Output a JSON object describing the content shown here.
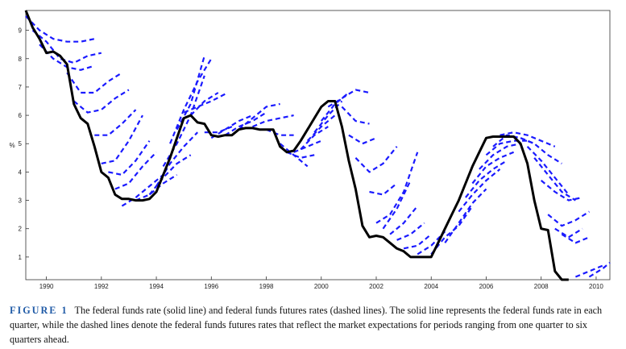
{
  "chart_data": {
    "type": "line",
    "ylabel": "%",
    "xlim": [
      1989.25,
      2010.5
    ],
    "ylim": [
      0.2,
      9.7
    ],
    "x_ticks": [
      1990,
      1992,
      1994,
      1996,
      1998,
      2000,
      2002,
      2004,
      2006,
      2008,
      2010
    ],
    "y_ticks": [
      1,
      2,
      3,
      4,
      5,
      6,
      7,
      8,
      9
    ],
    "grid": false,
    "colors": {
      "actual": "#000000",
      "futures": "#1a1aff"
    },
    "series": [
      {
        "style": "solid",
        "x": [
          1989.25,
          1989.5,
          1989.75,
          1990.0,
          1990.25,
          1990.5,
          1990.75,
          1991.0,
          1991.25,
          1991.5,
          1991.75,
          1992.0,
          1992.25,
          1992.5,
          1992.75,
          1993.0,
          1993.25,
          1993.5,
          1993.75,
          1994.0,
          1994.25,
          1994.5,
          1994.75,
          1995.0,
          1995.25,
          1995.5,
          1995.75,
          1996.0,
          1996.25,
          1996.5,
          1996.75,
          1997.0,
          1997.25,
          1997.5,
          1997.75,
          1998.0,
          1998.25,
          1998.5,
          1998.75,
          1999.0,
          1999.25,
          1999.5,
          1999.75,
          2000.0,
          2000.25,
          2000.5,
          2000.75,
          2001.0,
          2001.25,
          2001.5,
          2001.75,
          2002.0,
          2002.25,
          2002.5,
          2002.75,
          2003.0,
          2003.25,
          2003.5,
          2003.75,
          2004.0,
          2004.25,
          2004.5,
          2004.75,
          2005.0,
          2005.25,
          2005.5,
          2005.75,
          2006.0,
          2006.25,
          2006.5,
          2006.75,
          2007.0,
          2007.25,
          2007.5,
          2007.75,
          2008.0,
          2008.25,
          2008.5,
          2008.75,
          2009.0
        ],
        "y": [
          9.7,
          9.1,
          8.7,
          8.2,
          8.25,
          8.1,
          7.8,
          6.4,
          5.9,
          5.7,
          4.9,
          4.0,
          3.8,
          3.2,
          3.05,
          3.05,
          3.0,
          3.0,
          3.05,
          3.3,
          3.9,
          4.5,
          5.2,
          5.9,
          6.0,
          5.75,
          5.7,
          5.3,
          5.25,
          5.3,
          5.3,
          5.5,
          5.55,
          5.55,
          5.5,
          5.5,
          5.5,
          4.9,
          4.7,
          4.75,
          5.1,
          5.5,
          5.9,
          6.3,
          6.5,
          6.5,
          5.6,
          4.4,
          3.4,
          2.1,
          1.7,
          1.75,
          1.7,
          1.5,
          1.3,
          1.2,
          1.0,
          1.0,
          1.0,
          1.0,
          1.5,
          2.0,
          2.5,
          3.0,
          3.6,
          4.2,
          4.7,
          5.2,
          5.25,
          5.25,
          5.25,
          5.25,
          5.0,
          4.3,
          3.0,
          2.0,
          1.95,
          0.5,
          0.2,
          0.2
        ]
      },
      {
        "style": "dashed",
        "x": [
          1989.25,
          1989.75,
          1990.25,
          1990.75,
          1991.25,
          1991.75
        ],
        "y": [
          9.5,
          9.0,
          8.7,
          8.6,
          8.6,
          8.7
        ]
      },
      {
        "style": "dashed",
        "x": [
          1989.5,
          1990.0,
          1990.5,
          1991.0,
          1991.5,
          1992.0
        ],
        "y": [
          9.0,
          8.6,
          8.0,
          7.85,
          8.1,
          8.2
        ]
      },
      {
        "style": "dashed",
        "x": [
          1989.75,
          1990.25,
          1990.75,
          1991.25,
          1991.75
        ],
        "y": [
          8.5,
          8.0,
          7.7,
          7.6,
          7.75
        ]
      },
      {
        "style": "dashed",
        "x": [
          1990.75,
          1991.25,
          1991.75,
          1992.25,
          1992.75
        ],
        "y": [
          7.5,
          6.8,
          6.8,
          7.2,
          7.5
        ]
      },
      {
        "style": "dashed",
        "x": [
          1991.0,
          1991.5,
          1992.0,
          1992.5,
          1993.0
        ],
        "y": [
          6.5,
          6.1,
          6.2,
          6.6,
          6.9
        ]
      },
      {
        "style": "dashed",
        "x": [
          1991.75,
          1992.25,
          1992.75,
          1993.25
        ],
        "y": [
          5.3,
          5.3,
          5.7,
          6.2
        ]
      },
      {
        "style": "dashed",
        "x": [
          1992.0,
          1992.5,
          1993.0,
          1993.5
        ],
        "y": [
          4.3,
          4.4,
          5.1,
          6.0
        ]
      },
      {
        "style": "dashed",
        "x": [
          1992.25,
          1992.75,
          1993.25,
          1993.75
        ],
        "y": [
          4.0,
          3.9,
          4.4,
          5.1
        ]
      },
      {
        "style": "dashed",
        "x": [
          1992.5,
          1993.0,
          1993.5,
          1994.0
        ],
        "y": [
          3.4,
          3.6,
          4.2,
          4.7
        ]
      },
      {
        "style": "dashed",
        "x": [
          1992.75,
          1993.25,
          1993.75,
          1994.25
        ],
        "y": [
          2.8,
          3.1,
          3.5,
          3.9
        ]
      },
      {
        "style": "dashed",
        "x": [
          1993.25,
          1993.75,
          1994.25,
          1994.75
        ],
        "y": [
          3.0,
          3.2,
          3.6,
          3.9
        ]
      },
      {
        "style": "dashed",
        "x": [
          1993.75,
          1994.25,
          1994.75,
          1995.25
        ],
        "y": [
          3.2,
          3.8,
          4.3,
          4.6
        ]
      },
      {
        "style": "dashed",
        "x": [
          1994.0,
          1994.5,
          1995.0,
          1995.5
        ],
        "y": [
          3.5,
          4.3,
          4.9,
          5.4
        ]
      },
      {
        "style": "dashed",
        "x": [
          1994.25,
          1994.75,
          1995.25,
          1995.75
        ],
        "y": [
          4.2,
          5.0,
          6.0,
          7.4
        ]
      },
      {
        "style": "dashed",
        "x": [
          1994.5,
          1995.0,
          1995.5,
          1996.0
        ],
        "y": [
          5.0,
          6.2,
          7.2,
          8.0
        ]
      },
      {
        "style": "dashed",
        "x": [
          1994.75,
          1995.25,
          1995.75
        ],
        "y": [
          5.5,
          6.4,
          8.1
        ]
      },
      {
        "style": "dashed",
        "x": [
          1995.0,
          1995.5,
          1996.0,
          1996.5
        ],
        "y": [
          6.1,
          6.3,
          6.5,
          6.75
        ]
      },
      {
        "style": "dashed",
        "x": [
          1995.25,
          1995.75,
          1996.25
        ],
        "y": [
          6.0,
          6.5,
          6.8
        ]
      },
      {
        "style": "dashed",
        "x": [
          1995.75,
          1996.25,
          1996.75
        ],
        "y": [
          5.4,
          5.4,
          5.6
        ]
      },
      {
        "style": "dashed",
        "x": [
          1996.0,
          1996.5,
          1997.0,
          1997.5
        ],
        "y": [
          5.2,
          5.5,
          5.8,
          6.0
        ]
      },
      {
        "style": "dashed",
        "x": [
          1996.5,
          1997.0,
          1997.5,
          1998.0
        ],
        "y": [
          5.3,
          5.6,
          5.8,
          6.1
        ]
      },
      {
        "style": "dashed",
        "x": [
          1997.0,
          1997.5,
          1998.0,
          1998.5
        ],
        "y": [
          5.5,
          5.9,
          6.3,
          6.4
        ]
      },
      {
        "style": "dashed",
        "x": [
          1997.5,
          1998.0,
          1998.5,
          1999.0
        ],
        "y": [
          5.6,
          5.8,
          5.9,
          6.0
        ]
      },
      {
        "style": "dashed",
        "x": [
          1998.0,
          1998.5,
          1999.0
        ],
        "y": [
          5.5,
          5.3,
          5.3
        ]
      },
      {
        "style": "dashed",
        "x": [
          1998.5,
          1999.0,
          1999.5
        ],
        "y": [
          5.0,
          4.6,
          4.2
        ]
      },
      {
        "style": "dashed",
        "x": [
          1998.75,
          1999.25,
          1999.75
        ],
        "y": [
          4.7,
          4.5,
          4.6
        ]
      },
      {
        "style": "dashed",
        "x": [
          1999.0,
          1999.5,
          2000.0
        ],
        "y": [
          4.7,
          4.9,
          5.1
        ]
      },
      {
        "style": "dashed",
        "x": [
          1999.25,
          1999.75,
          2000.25
        ],
        "y": [
          4.8,
          5.3,
          5.6
        ]
      },
      {
        "style": "dashed",
        "x": [
          1999.5,
          2000.0,
          2000.5
        ],
        "y": [
          5.1,
          5.6,
          6.0
        ]
      },
      {
        "style": "dashed",
        "x": [
          1999.75,
          2000.25,
          2000.75
        ],
        "y": [
          5.4,
          6.0,
          6.5
        ]
      },
      {
        "style": "dashed",
        "x": [
          2000.0,
          2000.5,
          2001.0
        ],
        "y": [
          5.8,
          6.4,
          6.8
        ]
      },
      {
        "style": "dashed",
        "x": [
          2000.25,
          2000.75,
          2001.25,
          2001.75
        ],
        "y": [
          6.3,
          6.6,
          6.9,
          6.8
        ]
      },
      {
        "style": "dashed",
        "x": [
          2000.75,
          2001.25,
          2001.75
        ],
        "y": [
          6.3,
          5.8,
          5.7
        ]
      },
      {
        "style": "dashed",
        "x": [
          2001.0,
          2001.5,
          2002.0
        ],
        "y": [
          5.3,
          5.0,
          5.2
        ]
      },
      {
        "style": "dashed",
        "x": [
          2001.25,
          2001.75,
          2002.25,
          2002.75
        ],
        "y": [
          4.5,
          4.0,
          4.3,
          4.9
        ]
      },
      {
        "style": "dashed",
        "x": [
          2001.75,
          2002.25,
          2002.75
        ],
        "y": [
          3.3,
          3.2,
          3.6
        ]
      },
      {
        "style": "dashed",
        "x": [
          2002.0,
          2002.5,
          2003.0,
          2003.5
        ],
        "y": [
          2.2,
          2.5,
          3.3,
          4.7
        ]
      },
      {
        "style": "dashed",
        "x": [
          2002.25,
          2002.75,
          2003.25
        ],
        "y": [
          2.0,
          2.7,
          3.7
        ]
      },
      {
        "style": "dashed",
        "x": [
          2002.5,
          2003.0,
          2003.5
        ],
        "y": [
          1.8,
          2.2,
          2.8
        ]
      },
      {
        "style": "dashed",
        "x": [
          2002.75,
          2003.25,
          2003.75
        ],
        "y": [
          1.6,
          1.8,
          2.2
        ]
      },
      {
        "style": "dashed",
        "x": [
          2003.0,
          2003.5,
          2004.0
        ],
        "y": [
          1.3,
          1.4,
          1.8
        ]
      },
      {
        "style": "dashed",
        "x": [
          2003.5,
          2004.0,
          2004.5
        ],
        "y": [
          1.1,
          1.4,
          1.9
        ]
      },
      {
        "style": "dashed",
        "x": [
          2004.0,
          2004.5,
          2005.0,
          2005.5
        ],
        "y": [
          1.1,
          1.7,
          2.1,
          2.8
        ]
      },
      {
        "style": "dashed",
        "x": [
          2004.5,
          2005.0,
          2005.5,
          2006.0
        ],
        "y": [
          1.5,
          2.2,
          2.9,
          3.4
        ]
      },
      {
        "style": "dashed",
        "x": [
          2005.0,
          2005.5,
          2006.0,
          2006.5
        ],
        "y": [
          2.6,
          3.2,
          3.7,
          4.1
        ]
      },
      {
        "style": "dashed",
        "x": [
          2005.25,
          2005.75,
          2006.25,
          2006.75
        ],
        "y": [
          3.1,
          3.7,
          4.1,
          4.4
        ]
      },
      {
        "style": "dashed",
        "x": [
          2005.5,
          2006.0,
          2006.5,
          2007.0
        ],
        "y": [
          3.6,
          4.2,
          4.5,
          4.7
        ]
      },
      {
        "style": "dashed",
        "x": [
          2005.75,
          2006.25,
          2006.75,
          2007.25
        ],
        "y": [
          4.1,
          4.6,
          4.9,
          5.0
        ]
      },
      {
        "style": "dashed",
        "x": [
          2006.0,
          2006.5,
          2007.0,
          2007.5
        ],
        "y": [
          4.6,
          5.0,
          5.1,
          5.1
        ]
      },
      {
        "style": "dashed",
        "x": [
          2006.25,
          2006.75,
          2007.25,
          2007.75
        ],
        "y": [
          4.9,
          5.3,
          5.2,
          5.0
        ]
      },
      {
        "style": "dashed",
        "x": [
          2006.5,
          2007.0,
          2007.5,
          2008.0,
          2008.5
        ],
        "y": [
          5.3,
          5.4,
          5.3,
          5.1,
          4.9
        ]
      },
      {
        "style": "dashed",
        "x": [
          2007.25,
          2007.75,
          2008.25,
          2008.75
        ],
        "y": [
          5.2,
          5.0,
          4.6,
          4.3
        ]
      },
      {
        "style": "dashed",
        "x": [
          2007.5,
          2008.0,
          2008.5,
          2009.0
        ],
        "y": [
          4.9,
          4.4,
          3.8,
          3.2
        ]
      },
      {
        "style": "dashed",
        "x": [
          2007.75,
          2008.25,
          2008.75,
          2009.25
        ],
        "y": [
          4.5,
          3.9,
          3.3,
          3.0
        ]
      },
      {
        "style": "dashed",
        "x": [
          2008.0,
          2008.5,
          2009.0,
          2009.5
        ],
        "y": [
          3.7,
          3.3,
          3.0,
          3.1
        ]
      },
      {
        "style": "dashed",
        "x": [
          2008.25,
          2008.75,
          2009.25,
          2009.75
        ],
        "y": [
          2.5,
          2.1,
          2.3,
          2.6
        ]
      },
      {
        "style": "dashed",
        "x": [
          2008.5,
          2009.0,
          2009.5
        ],
        "y": [
          2.0,
          1.7,
          2.0
        ]
      },
      {
        "style": "dashed",
        "x": [
          2008.75,
          2009.25,
          2009.75
        ],
        "y": [
          1.8,
          1.5,
          1.7
        ]
      },
      {
        "style": "dashed",
        "x": [
          2009.25,
          2009.75,
          2010.25
        ],
        "y": [
          0.3,
          0.5,
          0.7
        ]
      },
      {
        "style": "dashed",
        "x": [
          2009.75,
          2010.25,
          2010.5
        ],
        "y": [
          0.3,
          0.6,
          0.8
        ]
      }
    ]
  },
  "caption": {
    "figure_label": "FIGURE 1",
    "text": "The federal funds rate (solid line) and federal funds futures rates (dashed lines). The solid line represents the federal funds rate in each quarter, while the dashed lines denote the federal funds futures rates that reflect the market expectations for periods ranging from one quarter to six quarters ahead."
  }
}
